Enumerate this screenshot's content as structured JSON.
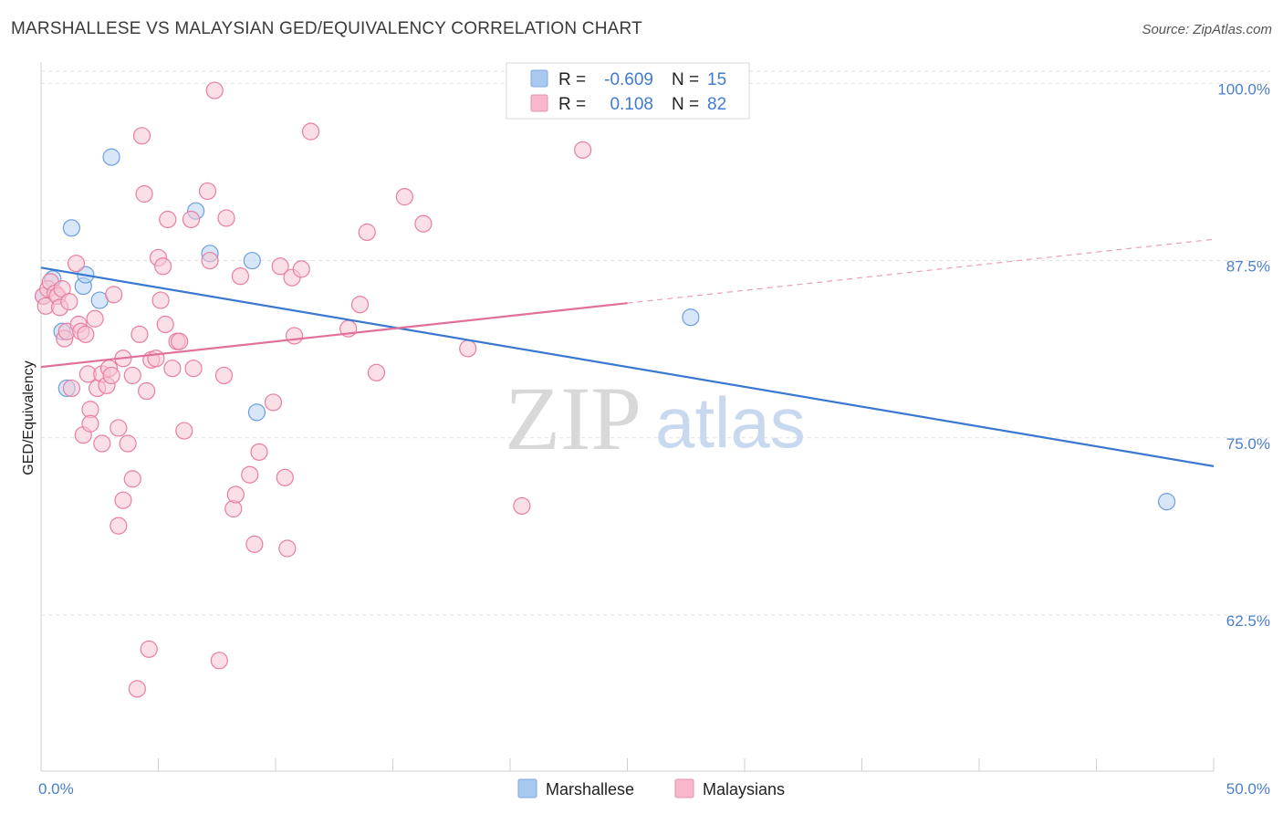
{
  "header": {
    "title": "MARSHALLESE VS MALAYSIAN GED/EQUIVALENCY CORRELATION CHART",
    "source": "Source: ZipAtlas.com"
  },
  "watermark": {
    "zip": "ZIP",
    "atlas": "atlas"
  },
  "legend": {
    "rows": [
      {
        "r_label": "R =",
        "r_value": "-0.609",
        "n_label": "N =",
        "n_value": "15",
        "color": "#a8c8f0"
      },
      {
        "r_label": "R =",
        "r_value": "0.108",
        "n_label": "N =",
        "n_value": "82",
        "color": "#f8b8cc"
      }
    ]
  },
  "bottom_legend": [
    {
      "label": "Marshallese",
      "color": "#a8c8f0"
    },
    {
      "label": "Malaysians",
      "color": "#f8b8cc"
    }
  ],
  "chart_data": {
    "type": "scatter",
    "ylabel": "GED/Equivalency",
    "xlabel": "",
    "xlim": [
      0,
      50
    ],
    "ylim": [
      51.5,
      101.5
    ],
    "x_tick_labels": [
      "0.0%",
      "50.0%"
    ],
    "y_ticks": [
      62.5,
      75.0,
      87.5,
      100.0
    ],
    "y_tick_labels": [
      "62.5%",
      "75.0%",
      "87.5%",
      "100.0%"
    ],
    "grid": true,
    "series": [
      {
        "name": "Marshallese",
        "color": "#6a9fe0",
        "fill": "#b8d2f4",
        "points": [
          [
            0.1,
            85.0
          ],
          [
            0.5,
            86.2
          ],
          [
            0.9,
            82.5
          ],
          [
            1.1,
            78.5
          ],
          [
            1.3,
            89.8
          ],
          [
            1.8,
            85.7
          ],
          [
            1.9,
            86.5
          ],
          [
            2.5,
            84.7
          ],
          [
            3.0,
            94.8
          ],
          [
            6.6,
            91.0
          ],
          [
            7.2,
            88.0
          ],
          [
            9.0,
            87.5
          ],
          [
            9.2,
            76.8
          ],
          [
            27.7,
            83.5
          ],
          [
            48.0,
            70.5
          ]
        ],
        "trend": {
          "x0": 0,
          "y0": 87.0,
          "x1": 50,
          "y1": 73.0
        }
      },
      {
        "name": "Malaysians",
        "color": "#e87ea0",
        "fill": "#f8c4d4",
        "points": [
          [
            0.1,
            85.0
          ],
          [
            0.2,
            84.3
          ],
          [
            0.3,
            85.5
          ],
          [
            0.4,
            86.0
          ],
          [
            0.6,
            85.2
          ],
          [
            0.7,
            85.0
          ],
          [
            0.8,
            84.2
          ],
          [
            0.9,
            85.5
          ],
          [
            1.0,
            82.0
          ],
          [
            1.1,
            82.5
          ],
          [
            1.2,
            84.6
          ],
          [
            1.3,
            78.5
          ],
          [
            1.5,
            87.3
          ],
          [
            1.6,
            83.0
          ],
          [
            1.7,
            82.5
          ],
          [
            1.8,
            75.2
          ],
          [
            1.9,
            82.3
          ],
          [
            2.0,
            79.5
          ],
          [
            2.1,
            77.0
          ],
          [
            2.1,
            76.0
          ],
          [
            2.3,
            83.4
          ],
          [
            2.4,
            78.5
          ],
          [
            2.6,
            74.6
          ],
          [
            2.6,
            79.5
          ],
          [
            2.8,
            78.7
          ],
          [
            2.9,
            79.9
          ],
          [
            3.0,
            79.4
          ],
          [
            3.1,
            85.1
          ],
          [
            3.3,
            75.7
          ],
          [
            3.3,
            68.8
          ],
          [
            3.5,
            70.6
          ],
          [
            3.5,
            80.6
          ],
          [
            3.7,
            74.6
          ],
          [
            3.9,
            79.4
          ],
          [
            3.9,
            72.1
          ],
          [
            4.2,
            82.3
          ],
          [
            4.3,
            96.3
          ],
          [
            4.4,
            92.2
          ],
          [
            4.5,
            78.3
          ],
          [
            4.6,
            60.1
          ],
          [
            4.7,
            80.5
          ],
          [
            4.9,
            80.6
          ],
          [
            5.0,
            87.7
          ],
          [
            5.1,
            84.7
          ],
          [
            5.2,
            87.1
          ],
          [
            5.3,
            83.0
          ],
          [
            5.4,
            90.4
          ],
          [
            5.6,
            79.9
          ],
          [
            5.8,
            81.8
          ],
          [
            5.9,
            81.8
          ],
          [
            6.1,
            75.5
          ],
          [
            6.4,
            90.4
          ],
          [
            6.5,
            79.9
          ],
          [
            7.1,
            92.4
          ],
          [
            7.2,
            87.5
          ],
          [
            7.4,
            99.5
          ],
          [
            7.6,
            59.3
          ],
          [
            7.8,
            79.4
          ],
          [
            7.9,
            90.5
          ],
          [
            8.2,
            70.0
          ],
          [
            8.3,
            71.0
          ],
          [
            8.5,
            86.4
          ],
          [
            8.9,
            72.4
          ],
          [
            9.1,
            67.5
          ],
          [
            9.3,
            74.0
          ],
          [
            9.9,
            77.5
          ],
          [
            10.2,
            87.1
          ],
          [
            10.4,
            72.2
          ],
          [
            10.5,
            67.2
          ],
          [
            10.7,
            86.3
          ],
          [
            10.8,
            82.2
          ],
          [
            11.1,
            86.9
          ],
          [
            11.5,
            96.6
          ],
          [
            13.1,
            82.7
          ],
          [
            13.6,
            84.4
          ],
          [
            13.9,
            89.5
          ],
          [
            14.3,
            79.6
          ],
          [
            15.5,
            92.0
          ],
          [
            16.3,
            90.1
          ],
          [
            18.2,
            81.3
          ],
          [
            20.5,
            70.2
          ],
          [
            23.1,
            95.3
          ],
          [
            4.1,
            57.3
          ]
        ],
        "trend": {
          "x0": 0,
          "y0": 80.0,
          "x1": 25,
          "y1": 84.5,
          "dashed_to_x": 50,
          "dashed_to_y": 89.0
        }
      }
    ]
  }
}
